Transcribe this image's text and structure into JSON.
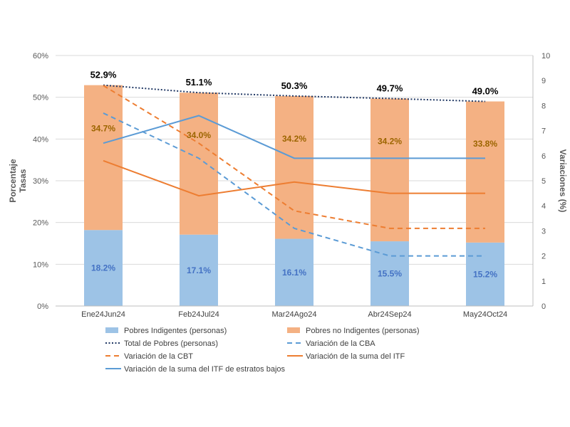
{
  "chart_data": {
    "type": "bar",
    "categories": [
      "Ene24Jun24",
      "Feb24Jul24",
      "Mar24Ago24",
      "Abr24Sep24",
      "May24Oct24"
    ],
    "ylabel_left": [
      "Porcentaje",
      "Tasas"
    ],
    "ylabel_right": "Variaciones (%)",
    "ylim_left": [
      0,
      60
    ],
    "ylim_right": [
      0,
      10
    ],
    "yticks_left": [
      "0%",
      "10%",
      "20%",
      "30%",
      "40%",
      "50%",
      "60%"
    ],
    "yticks_right": [
      "0",
      "1",
      "2",
      "3",
      "4",
      "5",
      "6",
      "7",
      "8",
      "9",
      "10"
    ],
    "grid": true,
    "legend_position": "bottom",
    "stacked_bars": [
      {
        "name": "Pobres Indigentes (personas)",
        "color": "#9dc3e6",
        "values": [
          18.2,
          17.1,
          16.1,
          15.5,
          15.2
        ],
        "labels": [
          "18.2%",
          "17.1%",
          "16.1%",
          "15.5%",
          "15.2%"
        ]
      },
      {
        "name": "Pobres no Indigentes (personas)",
        "color": "#f4b183",
        "values": [
          34.7,
          34.0,
          34.2,
          34.2,
          33.8
        ],
        "labels": [
          "34.7%",
          "34.0%",
          "34.2%",
          "34.2%",
          "33.8%"
        ]
      }
    ],
    "lines": [
      {
        "name": "Total de Pobres (personas)",
        "axis": "left",
        "style": "dotted",
        "color": "#203864",
        "values": [
          52.9,
          51.1,
          50.3,
          49.7,
          49.0
        ],
        "labels": [
          "52.9%",
          "51.1%",
          "50.3%",
          "49.7%",
          "49.0%"
        ]
      },
      {
        "name": "Variación de la CBA",
        "axis": "right",
        "style": "dashed",
        "color": "#5b9bd5",
        "values": [
          7.7,
          5.9,
          3.1,
          2.0,
          2.0
        ]
      },
      {
        "name": "Variación de la CBT",
        "axis": "right",
        "style": "dashed",
        "color": "#ed7d31",
        "values": [
          8.8,
          6.5,
          3.8,
          3.1,
          3.1
        ]
      },
      {
        "name": "Variación de la suma del ITF",
        "axis": "right",
        "style": "solid",
        "color": "#ed7d31",
        "values": [
          5.8,
          4.4,
          4.95,
          4.5,
          4.5
        ]
      },
      {
        "name": "Variación de la suma del ITF de estratos bajos",
        "axis": "right",
        "style": "solid",
        "color": "#5b9bd5",
        "values": [
          6.5,
          7.6,
          5.9,
          5.9,
          5.9
        ]
      }
    ],
    "legend": [
      {
        "label": "Pobres Indigentes (personas)",
        "kind": "patch",
        "color": "#9dc3e6"
      },
      {
        "label": "Pobres no Indigentes (personas)",
        "kind": "patch",
        "color": "#f4b183"
      },
      {
        "label": "Total de Pobres (personas)",
        "kind": "dotted",
        "color": "#203864"
      },
      {
        "label": "Variación de la CBA",
        "kind": "dashed",
        "color": "#5b9bd5"
      },
      {
        "label": "Variación de la CBT",
        "kind": "dashed",
        "color": "#ed7d31"
      },
      {
        "label": "Variación de la suma del ITF",
        "kind": "solid",
        "color": "#ed7d31"
      },
      {
        "label": "Variación de la suma del ITF de estratos bajos",
        "kind": "solid",
        "color": "#5b9bd5"
      }
    ]
  }
}
